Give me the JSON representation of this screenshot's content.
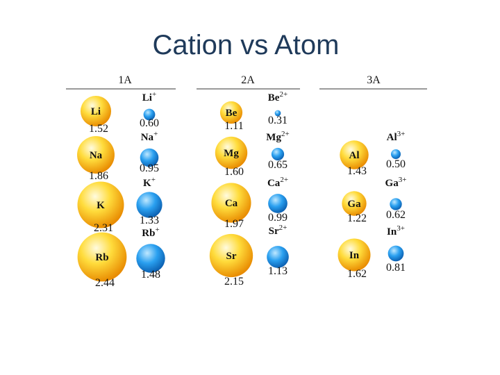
{
  "title": "Cation vs Atom",
  "groups": [
    {
      "name": "1A",
      "rows": [
        {
          "atom": "Li",
          "atom_radius": "1.52",
          "ion": "Li",
          "charge": "+",
          "ion_radius": "0.60"
        },
        {
          "atom": "Na",
          "atom_radius": "1.86",
          "ion": "Na",
          "charge": "+",
          "ion_radius": "0.95"
        },
        {
          "atom": "K",
          "atom_radius": "2.31",
          "ion": "K",
          "charge": "+",
          "ion_radius": "1.33"
        },
        {
          "atom": "Rb",
          "atom_radius": "2.44",
          "ion": "Rb",
          "charge": "+",
          "ion_radius": "1.48"
        }
      ]
    },
    {
      "name": "2A",
      "rows": [
        {
          "atom": "Be",
          "atom_radius": "1.11",
          "ion": "Be",
          "charge": "2+",
          "ion_radius": "0.31"
        },
        {
          "atom": "Mg",
          "atom_radius": "1.60",
          "ion": "Mg",
          "charge": "2+",
          "ion_radius": "0.65"
        },
        {
          "atom": "Ca",
          "atom_radius": "1.97",
          "ion": "Ca",
          "charge": "2+",
          "ion_radius": "0.99"
        },
        {
          "atom": "Sr",
          "atom_radius": "2.15",
          "ion": "Sr",
          "charge": "2+",
          "ion_radius": "1.13"
        }
      ]
    },
    {
      "name": "3A",
      "rows": [
        {
          "atom": "Al",
          "atom_radius": "1.43",
          "ion": "Al",
          "charge": "3+",
          "ion_radius": "0.50"
        },
        {
          "atom": "Ga",
          "atom_radius": "1.22",
          "ion": "Ga",
          "charge": "3+",
          "ion_radius": "0.62"
        },
        {
          "atom": "In",
          "atom_radius": "1.62",
          "ion": "In",
          "charge": "3+",
          "ion_radius": "0.81"
        }
      ]
    }
  ]
}
